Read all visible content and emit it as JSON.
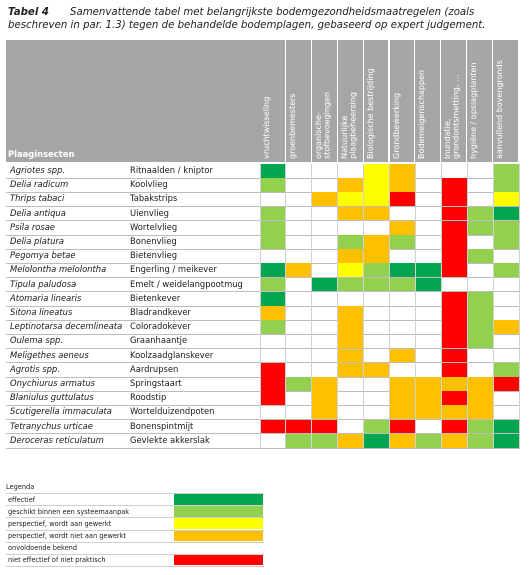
{
  "caption": {
    "label": "Tabel 4",
    "text": "Samenvattende tabel met belangrijkste bodemgezondheidsmaatregelen (zoals",
    "continuation": "beschreven in par. 1.3) tegen de behandelde bodemplagen, gebaseerd op expert judgement."
  },
  "header": {
    "row_label": "Plaaginsecten",
    "columns": [
      "vruchtwisseling",
      "groenbemesters",
      "organische-\nstofbevoegingen",
      "Natuurlijke\nplaagbeheersing",
      "Biologische bestrijding",
      "Grondbewerking",
      "Bodemeigenschappen",
      "Inundatie,\ngrondontsmetting, ...",
      "hygiëne / opslagplanten",
      "aanvullend bovengronds"
    ]
  },
  "colors": {
    "E": "#00a550",
    "G": "#92d050",
    "Y": "#ffff00",
    "O": "#ffc000",
    "W": "#ffffff",
    "R": "#ff0000"
  },
  "rows": [
    {
      "sci": "Agriotes spp.",
      "common": "Ritnaalden / kniptor",
      "cells": "E---YO---G"
    },
    {
      "sci": "Delia radicum",
      "common": "Koolvlieg",
      "cells": "G--OYO-R-G"
    },
    {
      "sci": "Thrips tabaci",
      "common": "Tabakstrips",
      "cells": "--OYYR-R-Y"
    },
    {
      "sci": "Delia antiqua",
      "common": "Uienvlieg",
      "cells": "G--OO--RGE"
    },
    {
      "sci": "Psila rosae",
      "common": "Wortelvlieg",
      "cells": "G----O-RGG"
    },
    {
      "sci": "Delia platura",
      "common": "Bonenvlieg",
      "cells": "G--GOG-R-G"
    },
    {
      "sci": "Pegomya betae",
      "common": "Bietenvlieg",
      "cells": "---OO--RG-"
    },
    {
      "sci": "Melolontha melolontha",
      "common": "Engerling / meikever",
      "cells": "EO-YGEER-G"
    },
    {
      "sci": "Tipula paludosa",
      "common": "Emelt / weidelangpootmug",
      "cells": "G-EGGGE---"
    },
    {
      "sci": "Atomaria linearis",
      "common": "Bietenkever",
      "cells": "E------RG-"
    },
    {
      "sci": "Sitona lineatus",
      "common": "Bladrandkever",
      "cells": "O--O---RG-"
    },
    {
      "sci": "Leptinotarsa decemlineata",
      "common": "Coloradokever",
      "cells": "G--O---RGO"
    },
    {
      "sci": "Oulema spp.",
      "common": "Graanhaantje",
      "cells": "---O---RG-"
    },
    {
      "sci": "Meligethes aeneus",
      "common": "Koolzaadglanskever",
      "cells": "---O-O-R--"
    },
    {
      "sci": "Agrotis spp.",
      "common": "Aardrupsen",
      "cells": "R--OO--R-G"
    },
    {
      "sci": "Onychiurus armatus",
      "common": "Springstaart",
      "cells": "RGO--OOOOR"
    },
    {
      "sci": "Blaniulus guttulatus",
      "common": "Roodstip",
      "cells": "R-O--OORO-"
    },
    {
      "sci": "Scutigerella immaculata",
      "common": "Wortelduizendpoten",
      "cells": "--O--OOOO-"
    },
    {
      "sci": "Tetranychus urticae",
      "common": "Bonenspintmijt",
      "cells": "RRR-GR-RGE"
    },
    {
      "sci": "Deroceras reticulatum",
      "common": "Gevlekte akkerslak",
      "cells": "-GGOEOGOGE"
    }
  ],
  "legend": {
    "title": "Legenda",
    "items": [
      {
        "label": "effectief",
        "color": "#00a550"
      },
      {
        "label": "geschikt binnen een systeemaanpak",
        "color": "#92d050"
      },
      {
        "label": "perspectief, wordt aan gewerkt",
        "color": "#ffff00"
      },
      {
        "label": "perspectief, wordt niet aan gewerkt",
        "color": "#ffc000"
      },
      {
        "label": "onvoldoende bekend",
        "color": "#ffffff"
      },
      {
        "label": "niet effectief of niet praktisch",
        "color": "#ff0000"
      }
    ]
  }
}
